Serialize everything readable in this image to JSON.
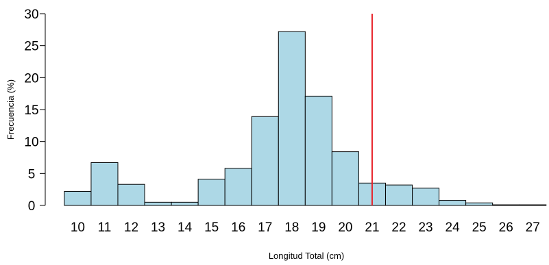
{
  "chart_data": {
    "type": "bar",
    "subtype": "histogram",
    "title": "",
    "xlabel": "Longitud Total (cm)",
    "ylabel": "Frecuencia (%)",
    "ylim": [
      0,
      30
    ],
    "yticks": [
      0,
      5,
      10,
      15,
      20,
      25,
      30
    ],
    "xticks": [
      10,
      11,
      12,
      13,
      14,
      15,
      16,
      17,
      18,
      19,
      20,
      21,
      22,
      23,
      24,
      25,
      26,
      27
    ],
    "bin_width": 1,
    "bins": [
      {
        "start": 9.5,
        "end": 10.5,
        "value": 2.2
      },
      {
        "start": 10.5,
        "end": 11.5,
        "value": 6.7
      },
      {
        "start": 11.5,
        "end": 12.5,
        "value": 3.3
      },
      {
        "start": 12.5,
        "end": 13.5,
        "value": 0.5
      },
      {
        "start": 13.5,
        "end": 14.5,
        "value": 0.5
      },
      {
        "start": 14.5,
        "end": 15.5,
        "value": 4.1
      },
      {
        "start": 15.5,
        "end": 16.5,
        "value": 5.8
      },
      {
        "start": 16.5,
        "end": 17.5,
        "value": 13.9
      },
      {
        "start": 17.5,
        "end": 18.5,
        "value": 27.2
      },
      {
        "start": 18.5,
        "end": 19.5,
        "value": 17.1
      },
      {
        "start": 19.5,
        "end": 20.5,
        "value": 8.4
      },
      {
        "start": 20.5,
        "end": 21.5,
        "value": 3.5
      },
      {
        "start": 21.5,
        "end": 22.5,
        "value": 3.2
      },
      {
        "start": 22.5,
        "end": 23.5,
        "value": 2.7
      },
      {
        "start": 23.5,
        "end": 24.5,
        "value": 0.8
      },
      {
        "start": 24.5,
        "end": 25.5,
        "value": 0.4
      },
      {
        "start": 25.5,
        "end": 26.5,
        "value": 0.1
      },
      {
        "start": 26.5,
        "end": 27.5,
        "value": 0.1
      }
    ],
    "reference_line": {
      "x": 21,
      "color": "#e8222a"
    },
    "bar_fill": "#add8e6",
    "bar_stroke": "#000000",
    "grid": false
  }
}
